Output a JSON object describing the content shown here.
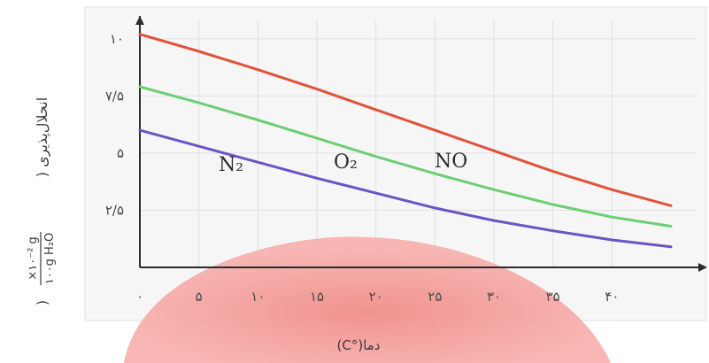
{
  "chart_data": {
    "type": "line",
    "ylabel": "انحلال‌پذیری (",
    "yunit_top": "×۱۰⁻² g",
    "yunit_bottom": "۱۰۰g H₂O",
    "ylabel_close": ")",
    "xlabel": "دما(°C)",
    "x_ticks": [
      "۰",
      "۵",
      "۱۰",
      "۱۵",
      "۲۰",
      "۲۵",
      "۳۰",
      "۳۵",
      "۴۰"
    ],
    "y_ticks": [
      "۲/۵",
      "۵",
      "۷/۵",
      "۱۰"
    ],
    "xlim": [
      0,
      45
    ],
    "ylim": [
      0,
      11
    ],
    "grid": true,
    "series": [
      {
        "name": "NO",
        "color": "#e0533a",
        "x": [
          0,
          5,
          10,
          15,
          20,
          25,
          30,
          35,
          40,
          45
        ],
        "y": [
          10.2,
          9.45,
          8.65,
          7.8,
          6.9,
          6.0,
          5.1,
          4.2,
          3.4,
          2.7
        ]
      },
      {
        "name": "O₂",
        "color": "#6ccf73",
        "x": [
          0,
          5,
          10,
          15,
          20,
          25,
          30,
          35,
          40,
          45
        ],
        "y": [
          7.9,
          7.2,
          6.45,
          5.65,
          4.85,
          4.1,
          3.4,
          2.75,
          2.2,
          1.8
        ]
      },
      {
        "name": "N₂",
        "color": "#6a55c4",
        "x": [
          0,
          5,
          10,
          15,
          20,
          25,
          30,
          35,
          40,
          45
        ],
        "y": [
          6.0,
          5.3,
          4.6,
          3.9,
          3.25,
          2.6,
          2.05,
          1.6,
          1.2,
          0.9
        ]
      }
    ]
  }
}
